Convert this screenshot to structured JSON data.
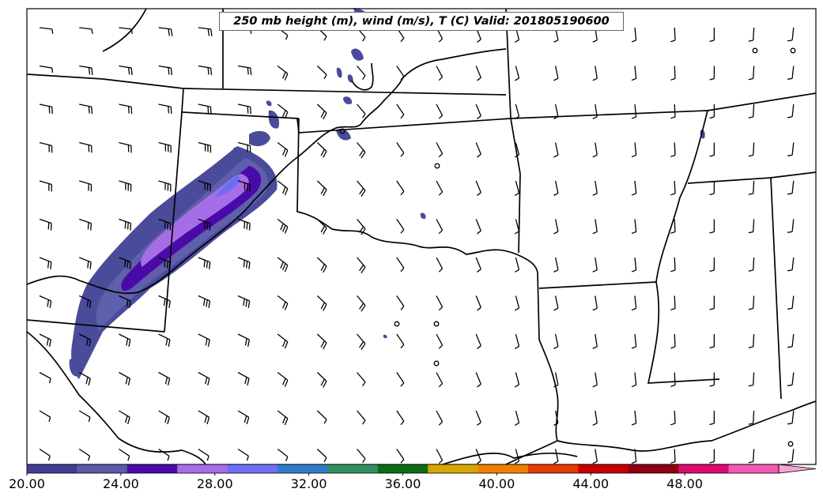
{
  "title": "250 mb height (m), wind (m/s), T (C) Valid: 201805190600",
  "colorbar": {
    "tick_labels": [
      "20.00",
      "24.00",
      "28.00",
      "32.00",
      "36.00",
      "40.00",
      "44.00",
      "48.00"
    ],
    "min": 20,
    "max": 52,
    "colors": [
      "#3e3e96",
      "#5a5aa8",
      "#4a0aa8",
      "#a66ee6",
      "#6e6ef5",
      "#2f7bc9",
      "#2e8e5e",
      "#0c6b14",
      "#d9a500",
      "#f07f00",
      "#e53a00",
      "#c80000",
      "#8e0010",
      "#dc0a6e",
      "#f259b4",
      "#f7a3d8"
    ]
  },
  "fill_colors": {
    "outer": "#4b4b9c",
    "mid": "#5f5fab",
    "inner": "#4a0aa8",
    "core": "#a66ee6",
    "peak": "#6e6ef5"
  },
  "map_features": [
    "state-boundaries",
    "coastline",
    "rivers",
    "wind-barbs",
    "contour-fill"
  ]
}
